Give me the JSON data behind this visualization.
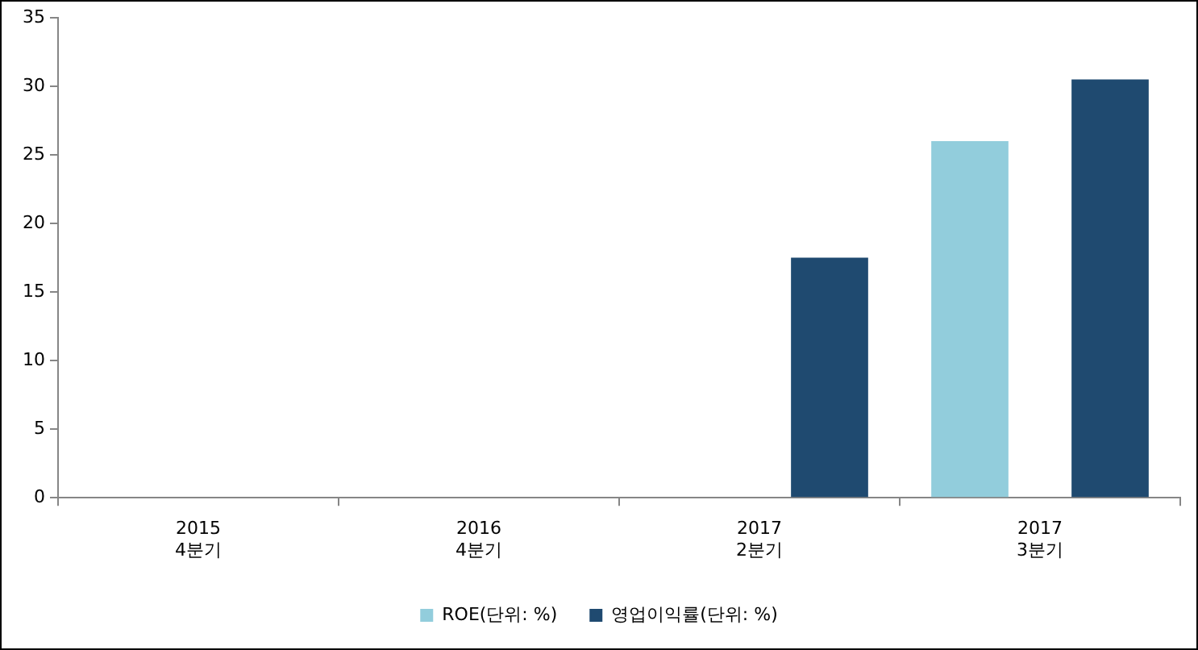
{
  "chart_data": {
    "type": "bar",
    "categories": [
      "2015\n4분기",
      "2016\n4분기",
      "2017\n2분기",
      "2017\n3분기"
    ],
    "series": [
      {
        "name": "ROE(단위: %)",
        "color": "#92cddc",
        "values": [
          null,
          null,
          null,
          26
        ]
      },
      {
        "name": "영업이익률(단위: %)",
        "color": "#1f4a70",
        "values": [
          null,
          null,
          17.5,
          30.5
        ]
      }
    ],
    "ylim": [
      0,
      35
    ],
    "yticks": [
      0,
      5,
      10,
      15,
      20,
      25,
      30,
      35
    ],
    "grid": false,
    "legend": "bottom"
  }
}
